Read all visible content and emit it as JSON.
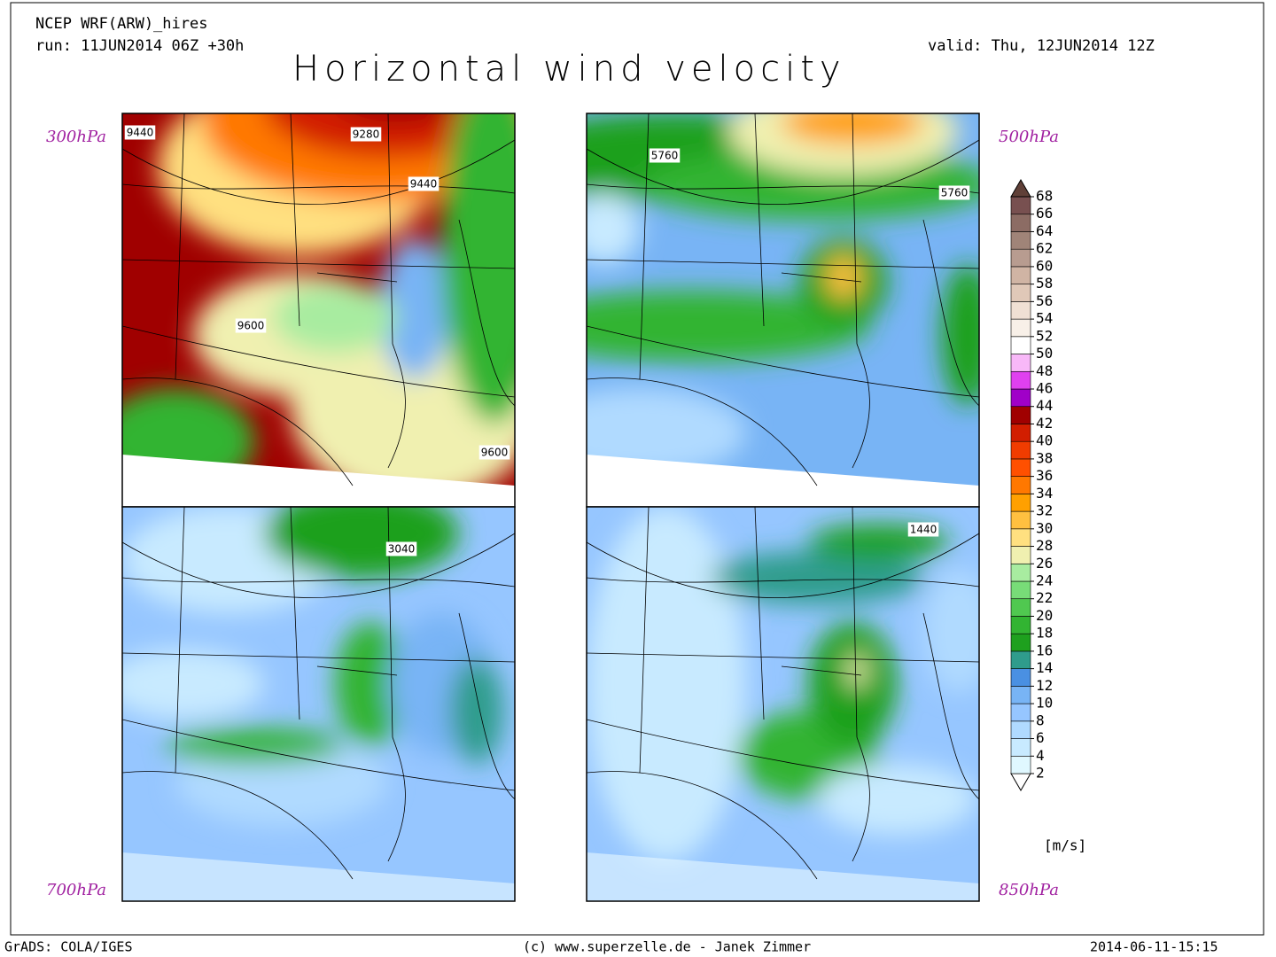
{
  "header": {
    "model": "NCEP WRF(ARW)_hires",
    "run": "run: 11JUN2014 06Z +30h",
    "valid": "valid: Thu, 12JUN2014 12Z",
    "title": "Horizontal wind velocity"
  },
  "panels": [
    {
      "level": "300hPa",
      "contour_labels": [
        "9440",
        "9280",
        "9440",
        "9600",
        "9600"
      ]
    },
    {
      "level": "500hPa",
      "contour_labels": [
        "5760",
        "5760"
      ]
    },
    {
      "level": "700hPa",
      "contour_labels": [
        "3040"
      ]
    },
    {
      "level": "850hPa",
      "contour_labels": [
        "1440"
      ]
    }
  ],
  "colorbar": {
    "unit": "[m/s]",
    "levels": [
      2,
      4,
      6,
      8,
      10,
      12,
      14,
      16,
      18,
      20,
      22,
      24,
      26,
      28,
      30,
      32,
      34,
      36,
      38,
      40,
      42,
      44,
      46,
      48,
      50,
      52,
      54,
      56,
      58,
      60,
      62,
      64,
      66,
      68
    ],
    "colors": [
      "#ffffff",
      "#e0f8ff",
      "#c8eaff",
      "#b0daff",
      "#96c6ff",
      "#78b4f5",
      "#4a90e2",
      "#2f9c8c",
      "#1ea01e",
      "#32b432",
      "#50c850",
      "#78dc78",
      "#a8eca0",
      "#f0f0b0",
      "#ffe080",
      "#ffc040",
      "#ffa000",
      "#ff7800",
      "#ff5000",
      "#f03c00",
      "#d21e00",
      "#a00000",
      "#a000c8",
      "#e040f0",
      "#f8b8f8",
      "#ffffff",
      "#f8f0e8",
      "#f0e0d4",
      "#e0c8b8",
      "#d0b4a4",
      "#b89c90",
      "#a08478",
      "#8c6c64",
      "#785050",
      "#604038"
    ]
  },
  "footer": {
    "left": "GrADS: COLA/IGES",
    "center": "(c) www.superzelle.de - Janek Zimmer",
    "right": "2014-06-11-15:15"
  }
}
